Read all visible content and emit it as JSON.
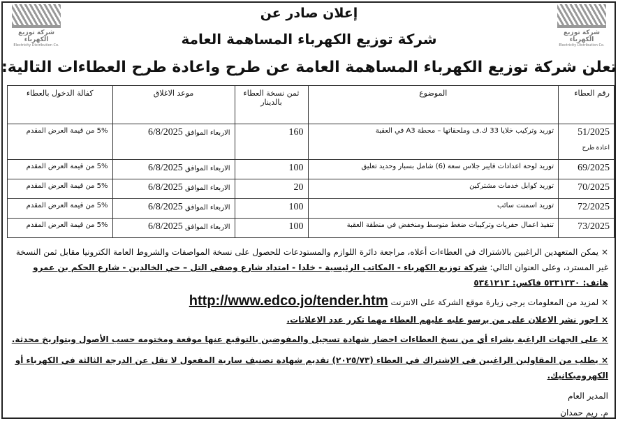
{
  "logo": {
    "ar": "شركة توزيع الكهرباء",
    "en": "Electricity Distribution Co."
  },
  "title1": "إعلان صادر عن",
  "title2": "شركة توزيع الكهرباء المساهمة العامة",
  "title3": "تعلن شركة توزيع الكهرباء المساهمة العامة عن طرح واعادة طرح العطاءات التالية:",
  "table": {
    "headers": [
      "رقم العطاء",
      "الموضوع",
      "ثمن نسخة العطاء بالدينار",
      "موعد الاغلاق",
      "كفالة الدخول بالعطاء"
    ],
    "rows": [
      {
        "num": "51/2025",
        "note": "اعادة طرح",
        "subject": "توريد وتركيب خلايا 33 ك.ف وملحقاتها – محطة A3 في العقبة",
        "price": "160",
        "day": "الاربعاء الموافق",
        "date": "6/8/2025",
        "bond": "5% من قيمة العرض المقدم"
      },
      {
        "num": "69/2025",
        "subject": "توريد لوحة اعدادات فايبر جلاس سعة (6) شامل بسبار وحديد تعليق",
        "price": "100",
        "day": "الاربعاء الموافق",
        "date": "6/8/2025",
        "bond": "5% من قيمة العرض المقدم"
      },
      {
        "num": "70/2025",
        "subject": "توريد كوابل خدمات مشتركين",
        "price": "20",
        "day": "الاربعاء الموافق",
        "date": "6/8/2025",
        "bond": "5% من قيمة العرض المقدم"
      },
      {
        "num": "72/2025",
        "subject": "توريد اسمنت سائب",
        "price": "100",
        "day": "الاربعاء الموافق",
        "date": "6/8/2025",
        "bond": "5% من قيمة العرض المقدم"
      },
      {
        "num": "73/2025",
        "subject": "تنفيذ اعمال حفريات وتركيبات ضغط متوسط ومنخفض في منطقة العقبة",
        "price": "100",
        "day": "الاربعاء الموافق",
        "date": "6/8/2025",
        "bond": "5% من قيمة العرض المقدم"
      }
    ]
  },
  "notes": {
    "n1a": "× يمكن المتعهدين الراغبين بالاشتراك في العطاءات أعلاه، مراجعة دائرة اللوازم والمستودعات للحصول على نسخة المواصفات والشروط العامة الكترونيا مقابل ثمن النسخة غير المسترد، وعلى العنوان التالي: ",
    "n1b": "شركة توزيع الكهرباء - المكاتب الرئيسية - خلدا - امتداد شارع وصفي التل – حي الخالدين - شارع الحكم بن عمرو هاتف: ٥٣٣١٣٣٠ فاكس: ٥٣٤١٢١٣",
    "n2": "× لمزيد من المعلومات يرجى زيارة موقع الشركة على الانترنت ",
    "url": "http://www.edco.jo/tender.htm",
    "n3": "× اجور نشر الاعلان على من يرسو عليه عليهم العطاء مهما تكرر عدد الاعلانات.",
    "n4": "× على الجهات الراغبة بشراء أي من نسخ العطاءات احضار شهادة تسجيل والمفوضين بالتوقيع عنها موقعة ومختومه حسب الأصول وبتواريخ محدثة.",
    "n5": "× يطلب من المقاولين الراغبين في الإشتراك في العطاء (٢٠٢٥/٧٣) تقديم شهادة تصنيف سارية المفعول لا تقل عن الدرجة الثالثة في الكهرباء أو الكهروميكانيك."
  },
  "signature": {
    "role": "المدير العام",
    "name": "م. ريم حمدان"
  }
}
